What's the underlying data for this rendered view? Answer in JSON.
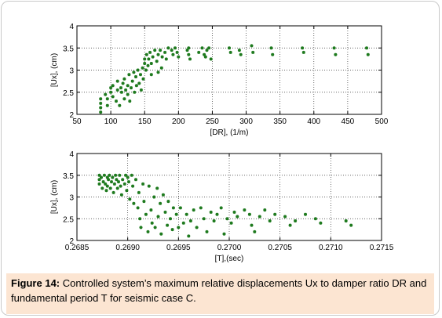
{
  "caption": {
    "label": "Figure 14:",
    "text": " Controlled system’s maximum relative displacements Ux to damper ratio DR and fundamental period T for seismic case C."
  },
  "colors": {
    "marker": "#1e7a1e",
    "grid": "#333333",
    "caption_bg": "#fce5d2"
  },
  "chart_data": [
    {
      "type": "scatter",
      "title": "",
      "xlabel": "[DR], (1/m)",
      "ylabel": "[Ux], (cm)",
      "xlim": [
        50,
        500
      ],
      "ylim": [
        2,
        4
      ],
      "xticks": [
        "50",
        "100",
        "150",
        "200",
        "250",
        "300",
        "350",
        "400",
        "450",
        "500"
      ],
      "yticks": [
        "2",
        "2.5",
        "3",
        "3.5",
        "4"
      ],
      "grid": true,
      "series": [
        {
          "points": [
            [
              85,
              2.05
            ],
            [
              85,
              2.15
            ],
            [
              85,
              2.25
            ],
            [
              85,
              2.35
            ],
            [
              92,
              2.45
            ],
            [
              95,
              2.2
            ],
            [
              95,
              2.35
            ],
            [
              100,
              2.5
            ],
            [
              100,
              2.6
            ],
            [
              103,
              2.4
            ],
            [
              103,
              2.65
            ],
            [
              108,
              2.3
            ],
            [
              110,
              2.55
            ],
            [
              110,
              2.75
            ],
            [
              113,
              2.2
            ],
            [
              115,
              2.6
            ],
            [
              116,
              2.5
            ],
            [
              118,
              2.7
            ],
            [
              120,
              2.35
            ],
            [
              120,
              2.8
            ],
            [
              122,
              2.55
            ],
            [
              125,
              2.45
            ],
            [
              125,
              2.65
            ],
            [
              127,
              2.9
            ],
            [
              128,
              2.3
            ],
            [
              130,
              2.6
            ],
            [
              132,
              2.75
            ],
            [
              134,
              2.95
            ],
            [
              135,
              2.5
            ],
            [
              137,
              2.85
            ],
            [
              138,
              2.65
            ],
            [
              140,
              3.0
            ],
            [
              142,
              2.7
            ],
            [
              144,
              2.9
            ],
            [
              145,
              2.55
            ],
            [
              147,
              3.05
            ],
            [
              148,
              2.8
            ],
            [
              150,
              3.15
            ],
            [
              150,
              3.25
            ],
            [
              152,
              3.0
            ],
            [
              153,
              3.35
            ],
            [
              155,
              3.1
            ],
            [
              156,
              3.25
            ],
            [
              158,
              3.4
            ],
            [
              160,
              3.15
            ],
            [
              160,
              2.9
            ],
            [
              162,
              3.3
            ],
            [
              165,
              3.45
            ],
            [
              168,
              3.2
            ],
            [
              170,
              2.95
            ],
            [
              170,
              3.35
            ],
            [
              173,
              3.45
            ],
            [
              175,
              3.05
            ],
            [
              176,
              3.3
            ],
            [
              180,
              3.4
            ],
            [
              182,
              3.25
            ],
            [
              185,
              3.5
            ],
            [
              190,
              3.45
            ],
            [
              192,
              3.35
            ],
            [
              195,
              3.5
            ],
            [
              198,
              3.4
            ],
            [
              200,
              3.3
            ],
            [
              213,
              3.45
            ],
            [
              215,
              3.5
            ],
            [
              215,
              3.35
            ],
            [
              217,
              3.25
            ],
            [
              230,
              3.4
            ],
            [
              235,
              3.5
            ],
            [
              238,
              3.35
            ],
            [
              240,
              3.3
            ],
            [
              242,
              3.45
            ],
            [
              245,
              3.5
            ],
            [
              248,
              3.25
            ],
            [
              275,
              3.5
            ],
            [
              277,
              3.4
            ],
            [
              290,
              3.45
            ],
            [
              292,
              3.35
            ],
            [
              308,
              3.55
            ],
            [
              310,
              3.4
            ],
            [
              337,
              3.5
            ],
            [
              339,
              3.35
            ],
            [
              383,
              3.5
            ],
            [
              385,
              3.4
            ],
            [
              430,
              3.5
            ],
            [
              432,
              3.35
            ],
            [
              478,
              3.5
            ],
            [
              480,
              3.35
            ]
          ]
        }
      ]
    },
    {
      "type": "scatter",
      "title": "",
      "xlabel": "[T],(sec)",
      "ylabel": "[Ux], (cm)",
      "xlim": [
        0.2685,
        0.2715
      ],
      "ylim": [
        2,
        4
      ],
      "xticks": [
        "0.2685",
        "0.2690",
        "0.2695",
        "0.2700",
        "0.2705",
        "0.2710",
        "0.2715"
      ],
      "yticks": [
        "2",
        "2.5",
        "3",
        "3.5",
        "4"
      ],
      "grid": true,
      "series": [
        {
          "points": [
            [
              0.26872,
              3.5
            ],
            [
              0.26872,
              3.4
            ],
            [
              0.26872,
              3.3
            ],
            [
              0.26874,
              3.45
            ],
            [
              0.26875,
              3.2
            ],
            [
              0.26876,
              3.35
            ],
            [
              0.26877,
              3.5
            ],
            [
              0.26878,
              3.3
            ],
            [
              0.26879,
              3.15
            ],
            [
              0.2688,
              3.45
            ],
            [
              0.2688,
              3.25
            ],
            [
              0.26881,
              3.4
            ],
            [
              0.26882,
              3.5
            ],
            [
              0.26883,
              3.2
            ],
            [
              0.26884,
              3.35
            ],
            [
              0.26885,
              3.45
            ],
            [
              0.26886,
              3.1
            ],
            [
              0.26887,
              3.3
            ],
            [
              0.26888,
              3.5
            ],
            [
              0.26889,
              3.4
            ],
            [
              0.2689,
              3.2
            ],
            [
              0.26891,
              3.35
            ],
            [
              0.26892,
              3.5
            ],
            [
              0.26893,
              3.25
            ],
            [
              0.26894,
              3.05
            ],
            [
              0.26895,
              3.4
            ],
            [
              0.26897,
              3.3
            ],
            [
              0.26898,
              3.5
            ],
            [
              0.26899,
              3.15
            ],
            [
              0.269,
              3.45
            ],
            [
              0.26901,
              3.35
            ],
            [
              0.26902,
              2.95
            ],
            [
              0.26904,
              3.5
            ],
            [
              0.26905,
              3.25
            ],
            [
              0.26906,
              2.85
            ],
            [
              0.26908,
              3.4
            ],
            [
              0.2691,
              2.75
            ],
            [
              0.26911,
              3.1
            ],
            [
              0.26912,
              2.5
            ],
            [
              0.26913,
              2.3
            ],
            [
              0.26915,
              3.3
            ],
            [
              0.26916,
              2.9
            ],
            [
              0.26918,
              2.6
            ],
            [
              0.2692,
              2.2
            ],
            [
              0.26921,
              3.25
            ],
            [
              0.26923,
              2.7
            ],
            [
              0.26924,
              2.4
            ],
            [
              0.26926,
              3.0
            ],
            [
              0.26927,
              2.3
            ],
            [
              0.26929,
              3.2
            ],
            [
              0.2693,
              2.55
            ],
            [
              0.26932,
              2.85
            ],
            [
              0.26933,
              2.15
            ],
            [
              0.26935,
              3.05
            ],
            [
              0.26937,
              2.65
            ],
            [
              0.26939,
              2.35
            ],
            [
              0.2694,
              2.9
            ],
            [
              0.26942,
              2.5
            ],
            [
              0.26944,
              2.25
            ],
            [
              0.26945,
              2.75
            ],
            [
              0.26948,
              2.6
            ],
            [
              0.2695,
              2.3
            ],
            [
              0.26952,
              2.75
            ],
            [
              0.26955,
              2.4
            ],
            [
              0.26958,
              2.6
            ],
            [
              0.2696,
              2.1
            ],
            [
              0.26962,
              2.45
            ],
            [
              0.26965,
              2.7
            ],
            [
              0.26968,
              2.3
            ],
            [
              0.26972,
              2.75
            ],
            [
              0.26975,
              2.5
            ],
            [
              0.26978,
              2.2
            ],
            [
              0.26982,
              2.65
            ],
            [
              0.26985,
              2.45
            ],
            [
              0.26988,
              2.6
            ],
            [
              0.26992,
              2.75
            ],
            [
              0.26995,
              2.15
            ],
            [
              0.26998,
              2.5
            ],
            [
              0.27002,
              2.4
            ],
            [
              0.27005,
              2.65
            ],
            [
              0.27008,
              2.55
            ],
            [
              0.27015,
              2.7
            ],
            [
              0.2702,
              2.6
            ],
            [
              0.27022,
              2.35
            ],
            [
              0.27025,
              2.2
            ],
            [
              0.2703,
              2.55
            ],
            [
              0.27035,
              2.7
            ],
            [
              0.2704,
              2.45
            ],
            [
              0.27045,
              2.6
            ],
            [
              0.27055,
              2.55
            ],
            [
              0.2706,
              2.35
            ],
            [
              0.27065,
              2.45
            ],
            [
              0.27075,
              2.6
            ],
            [
              0.27085,
              2.5
            ],
            [
              0.2709,
              2.4
            ],
            [
              0.27115,
              2.45
            ],
            [
              0.2712,
              2.35
            ]
          ]
        }
      ]
    }
  ]
}
